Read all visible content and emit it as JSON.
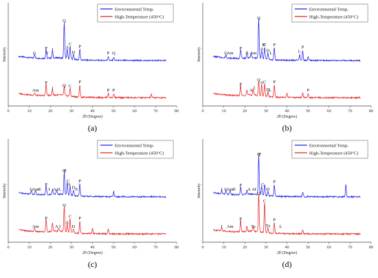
{
  "chart_data": [
    {
      "type": "line",
      "caption": "(a)",
      "xlabel": "2θ (Degree)",
      "ylabel": "Intensity",
      "xlim": [
        0,
        80
      ],
      "xticks": [
        "0",
        "10",
        "20",
        "30",
        "40",
        "50",
        "60",
        "70",
        "80"
      ],
      "legend_position": "top-right",
      "series": [
        {
          "name": "Environmental Temp.",
          "color": "#1f1fe6",
          "x_range": [
            5,
            75
          ],
          "peaks": [
            [
              12.5,
              0.1
            ],
            [
              18,
              0.22
            ],
            [
              21,
              0.18
            ],
            [
              26.6,
              0.88
            ],
            [
              28,
              0.24
            ],
            [
              29.4,
              0.32
            ],
            [
              31,
              0.12
            ],
            [
              34,
              0.26
            ],
            [
              47.5,
              0.1
            ],
            [
              50.1,
              0.08
            ]
          ]
        },
        {
          "name": "High-Temperature (450°C)",
          "color": "#e61f1f",
          "x_range": [
            5,
            75
          ],
          "peaks": [
            [
              12.5,
              0.06
            ],
            [
              18,
              0.28
            ],
            [
              21,
              0.14
            ],
            [
              26.6,
              0.22
            ],
            [
              29.4,
              0.2
            ],
            [
              34,
              0.3
            ],
            [
              47.5,
              0.1
            ],
            [
              50.1,
              0.1
            ],
            [
              68,
              0.08
            ]
          ]
        }
      ],
      "annotations": {
        "blue": [
          [
            "G",
            12.5
          ],
          [
            "I",
            18.6
          ],
          [
            "P",
            18
          ],
          [
            "I",
            21
          ],
          [
            "Q",
            26.6
          ],
          [
            "A",
            28
          ],
          [
            "C",
            29.4
          ],
          [
            "D",
            31
          ],
          [
            "P",
            34
          ],
          [
            "P",
            47.5
          ],
          [
            "Q",
            50.1
          ]
        ],
        "red": [
          [
            "Am",
            13
          ],
          [
            "P",
            18
          ],
          [
            "I",
            21
          ],
          [
            "Q",
            26.6
          ],
          [
            "C",
            29.4
          ],
          [
            "P",
            34
          ],
          [
            "P",
            47.5
          ],
          [
            "P",
            50.1
          ]
        ]
      }
    },
    {
      "type": "line",
      "caption": "(b)",
      "xlabel": "2θ (Degree)",
      "ylabel": "Intensity",
      "xlim": [
        0,
        80
      ],
      "xticks": [
        "0",
        "10",
        "20",
        "30",
        "40",
        "50",
        "60",
        "70",
        "80"
      ],
      "legend_position": "top-right",
      "series": [
        {
          "name": "Environmental Temp.",
          "color": "#1f1fe6",
          "x_range": [
            5,
            75
          ],
          "peaks": [
            [
              11,
              0.08
            ],
            [
              18,
              0.22
            ],
            [
              21,
              0.12
            ],
            [
              23,
              0.1
            ],
            [
              26.6,
              0.95
            ],
            [
              28,
              0.2
            ],
            [
              29.4,
              0.3
            ],
            [
              31,
              0.16
            ],
            [
              34,
              0.3
            ],
            [
              46,
              0.14
            ],
            [
              47.5,
              0.24
            ],
            [
              50.1,
              0.1
            ]
          ]
        },
        {
          "name": "High-Temperature (450°C)",
          "color": "#e61f1f",
          "x_range": [
            5,
            75
          ],
          "peaks": [
            [
              18,
              0.24
            ],
            [
              21,
              0.12
            ],
            [
              24,
              0.16
            ],
            [
              26.6,
              0.35
            ],
            [
              28,
              0.28
            ],
            [
              29.4,
              0.3
            ],
            [
              31,
              0.12
            ],
            [
              34,
              0.3
            ],
            [
              40,
              0.1
            ],
            [
              47.5,
              0.12
            ],
            [
              50.1,
              0.1
            ]
          ]
        }
      ],
      "annotations": {
        "blue": [
          [
            "G",
            11
          ],
          [
            "Am",
            13
          ],
          [
            "P",
            18
          ],
          [
            "A",
            21
          ],
          [
            "Am",
            24
          ],
          [
            "Q",
            26.6
          ],
          [
            "A",
            28
          ],
          [
            "D",
            29
          ],
          [
            "C",
            29.4
          ],
          [
            "D",
            31
          ],
          [
            "L",
            32.5
          ],
          [
            "P",
            34
          ],
          [
            "L",
            46
          ],
          [
            "P",
            47.5
          ]
        ],
        "red": [
          [
            "P",
            18
          ],
          [
            "A",
            23
          ],
          [
            "I",
            24.5
          ],
          [
            "Q",
            26.6
          ],
          [
            "A",
            28
          ],
          [
            "C",
            29.4
          ],
          [
            "D",
            31
          ],
          [
            "L",
            32
          ],
          [
            "P",
            34
          ],
          [
            "P",
            50.1
          ]
        ]
      }
    },
    {
      "type": "line",
      "caption": "(c)",
      "xlabel": "2θ (Degree)",
      "ylabel": "Intensity",
      "xlim": [
        0,
        80
      ],
      "xticks": [
        "0",
        "10",
        "20",
        "30",
        "40",
        "50",
        "60",
        "70",
        "80"
      ],
      "legend_position": "top-right",
      "series": [
        {
          "name": "Environmental Temp.",
          "color": "#1f1fe6",
          "x_range": [
            5,
            75
          ],
          "peaks": [
            [
              11,
              0.1
            ],
            [
              13,
              0.1
            ],
            [
              18,
              0.22
            ],
            [
              21,
              0.12
            ],
            [
              23,
              0.1
            ],
            [
              26.6,
              0.55
            ],
            [
              28,
              0.3
            ],
            [
              29.4,
              0.22
            ],
            [
              31,
              0.14
            ],
            [
              34,
              0.3
            ],
            [
              50.1,
              0.12
            ]
          ]
        },
        {
          "name": "High-Temperature (450°C)",
          "color": "#e61f1f",
          "x_range": [
            5,
            75
          ],
          "peaks": [
            [
              12.5,
              0.08
            ],
            [
              18,
              0.3
            ],
            [
              21,
              0.22
            ],
            [
              24,
              0.08
            ],
            [
              26.6,
              0.62
            ],
            [
              28,
              0.2
            ],
            [
              29.4,
              0.34
            ],
            [
              31,
              0.1
            ],
            [
              34,
              0.3
            ],
            [
              40,
              0.12
            ],
            [
              47.5,
              0.12
            ]
          ]
        }
      ],
      "annotations": {
        "blue": [
          [
            "G",
            11
          ],
          [
            "Am",
            13
          ],
          [
            "E",
            15
          ],
          [
            "P",
            18
          ],
          [
            "I",
            19.5
          ],
          [
            "A",
            22
          ],
          [
            "I",
            23.5
          ],
          [
            "L",
            24.5
          ],
          [
            "Q",
            26.6
          ],
          [
            "P",
            27
          ],
          [
            "C",
            28.5
          ],
          [
            "A",
            29
          ],
          [
            "D",
            31
          ],
          [
            "E",
            32.5
          ],
          [
            "P",
            34
          ]
        ],
        "red": [
          [
            "Am",
            13
          ],
          [
            "P",
            18
          ],
          [
            "A",
            23
          ],
          [
            "I",
            24.5
          ],
          [
            "Q",
            26.6
          ],
          [
            "A",
            28
          ],
          [
            "C",
            29.4
          ],
          [
            "D",
            31
          ],
          [
            "P",
            34
          ]
        ]
      }
    },
    {
      "type": "line",
      "caption": "(d)",
      "xlabel": "2θ (Degree)",
      "ylabel": "Intensity",
      "xlim": [
        0,
        80
      ],
      "xticks": [
        "0",
        "10",
        "20",
        "30",
        "40",
        "50",
        "60",
        "70",
        "80"
      ],
      "legend_position": "top-right",
      "series": [
        {
          "name": "Environmental Temp.",
          "color": "#1f1fe6",
          "x_range": [
            5,
            75
          ],
          "peaks": [
            [
              9,
              0.08
            ],
            [
              11,
              0.1
            ],
            [
              13,
              0.1
            ],
            [
              18,
              0.2
            ],
            [
              21,
              0.1
            ],
            [
              26.6,
              0.95
            ],
            [
              28,
              0.22
            ],
            [
              29.4,
              0.26
            ],
            [
              31,
              0.1
            ],
            [
              34,
              0.28
            ],
            [
              47.5,
              0.1
            ],
            [
              68,
              0.3
            ]
          ]
        },
        {
          "name": "High-Temperature (450°C)",
          "color": "#e61f1f",
          "x_range": [
            5,
            75
          ],
          "peaks": [
            [
              9,
              0.08
            ],
            [
              18,
              0.28
            ],
            [
              21,
              0.12
            ],
            [
              24,
              0.1
            ],
            [
              26.6,
              0.9
            ],
            [
              29.4,
              0.72
            ],
            [
              31,
              0.12
            ],
            [
              34,
              0.26
            ],
            [
              47.5,
              0.1
            ]
          ]
        }
      ],
      "annotations": {
        "blue": [
          [
            "I",
            9
          ],
          [
            "G",
            11
          ],
          [
            "Am",
            13
          ],
          [
            "E",
            15
          ],
          [
            "P",
            18
          ],
          [
            "A",
            22
          ],
          [
            "A",
            24
          ],
          [
            "I",
            25
          ],
          [
            "Q",
            26.6
          ],
          [
            "P",
            27
          ],
          [
            "C",
            28.5
          ],
          [
            "D",
            31
          ],
          [
            "P",
            34
          ]
        ],
        "red": [
          [
            "I",
            9
          ],
          [
            "Am",
            13
          ],
          [
            "P",
            18
          ],
          [
            "Tz",
            24
          ],
          [
            "Q",
            26.6
          ],
          [
            "C",
            29.4
          ],
          [
            "P",
            34
          ],
          [
            "L",
            37
          ],
          [
            "Tz",
            31
          ]
        ]
      }
    }
  ]
}
